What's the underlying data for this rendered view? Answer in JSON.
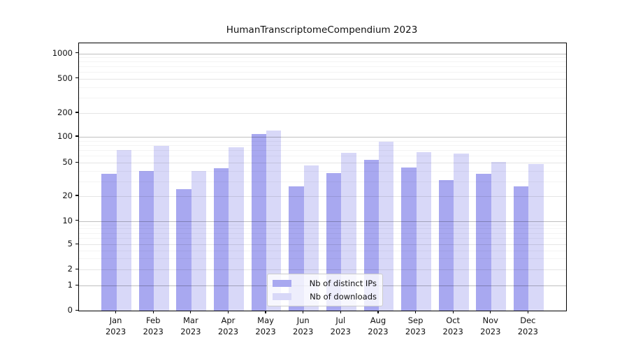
{
  "figure": {
    "title": "HumanTranscriptomeCompendium 2023",
    "background_color": "#ffffff"
  },
  "chart_data": {
    "type": "bar",
    "title": "HumanTranscriptomeCompendium 2023",
    "categories": [
      "Jan",
      "Feb",
      "Mar",
      "Apr",
      "May",
      "Jun",
      "Jul",
      "Aug",
      "Sep",
      "Oct",
      "Nov",
      "Dec"
    ],
    "category_year_line": "2023",
    "series": [
      {
        "name": "Nb of distinct IPs",
        "color": "#a8a8f0",
        "values": [
          37,
          40,
          24,
          43,
          108,
          26,
          38,
          54,
          44,
          31,
          37,
          26
        ]
      },
      {
        "name": "Nb of downloads",
        "color": "#d8d8f8",
        "values": [
          70,
          79,
          40,
          75,
          120,
          47,
          65,
          88,
          66,
          64,
          51,
          48
        ]
      }
    ],
    "xlabel": "",
    "ylabel": "",
    "yscale": "asinh-log",
    "y_ticks": [
      0,
      1,
      2,
      5,
      10,
      20,
      50,
      100,
      200,
      500,
      1000
    ],
    "y_tick_labels": [
      "0",
      "1",
      "2",
      "5",
      "10",
      "20",
      "50",
      "100",
      "200",
      "500",
      "1000"
    ],
    "ylim": [
      0,
      1300
    ],
    "grid": "both-major-and-minor",
    "legend": {
      "position": "lower center",
      "entries": [
        "Nb of distinct IPs",
        "Nb of downloads"
      ]
    }
  }
}
